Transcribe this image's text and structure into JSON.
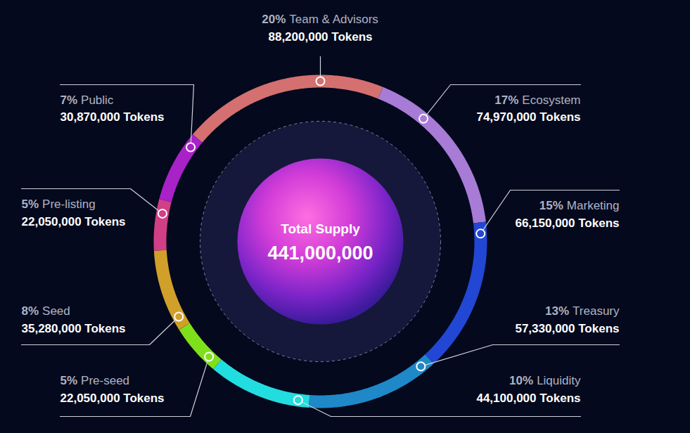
{
  "chart_data": {
    "type": "donut",
    "center_label": "Total Supply",
    "center_value_label": "441,000,000",
    "categories": [
      "Team & Advisors",
      "Ecosystem",
      "Marketing",
      "Treasury",
      "Liquidity",
      "Pre-seed",
      "Seed",
      "Pre-listing",
      "Public"
    ],
    "values": [
      20,
      17,
      15,
      13,
      10,
      5,
      8,
      5,
      7
    ],
    "value_labels": [
      "20%",
      "17%",
      "15%",
      "13%",
      "10%",
      "5%",
      "8%",
      "5%",
      "7%"
    ],
    "token_labels": [
      "88,200,000 Tokens",
      "74,970,000 Tokens",
      "66,150,000 Tokens",
      "57,330,000 Tokens",
      "44,100,000 Tokens",
      "22,050,000 Tokens",
      "35,280,000 Tokens",
      "22,050,000 Tokens",
      "30,870,000 Tokens"
    ],
    "colors": [
      "#d4706f",
      "#a77bd6",
      "#2247d4",
      "#1e88c8",
      "#22dde0",
      "#7ee01a",
      "#d1a02a",
      "#d13f86",
      "#a822c8"
    ],
    "data_labels": true
  }
}
